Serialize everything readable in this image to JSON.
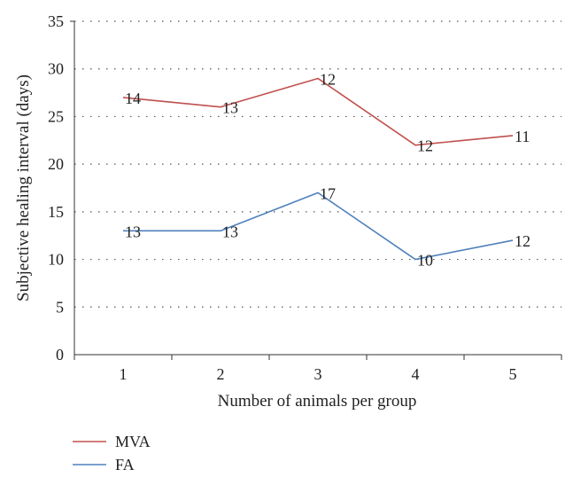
{
  "chart_data": {
    "type": "line",
    "title": "",
    "xlabel": "Number of animals per group",
    "ylabel": "Subjective healing interval (days)",
    "categories": [
      "1",
      "2",
      "3",
      "4",
      "5"
    ],
    "ylim": [
      0,
      35
    ],
    "yticks": [
      0,
      5,
      10,
      15,
      20,
      25,
      30,
      35
    ],
    "grid": "horizontal-dotted",
    "legend_position": "bottom-left",
    "series": [
      {
        "name": "MVA",
        "color": "#c0504d",
        "values": [
          27,
          26,
          29,
          22,
          23
        ],
        "point_labels": [
          "14",
          "13",
          "12",
          "12",
          "11"
        ]
      },
      {
        "name": "FA",
        "color": "#4f81bd",
        "values": [
          13,
          13,
          17,
          10,
          12
        ],
        "point_labels": [
          "13",
          "13",
          "17",
          "10",
          "12"
        ]
      }
    ]
  }
}
